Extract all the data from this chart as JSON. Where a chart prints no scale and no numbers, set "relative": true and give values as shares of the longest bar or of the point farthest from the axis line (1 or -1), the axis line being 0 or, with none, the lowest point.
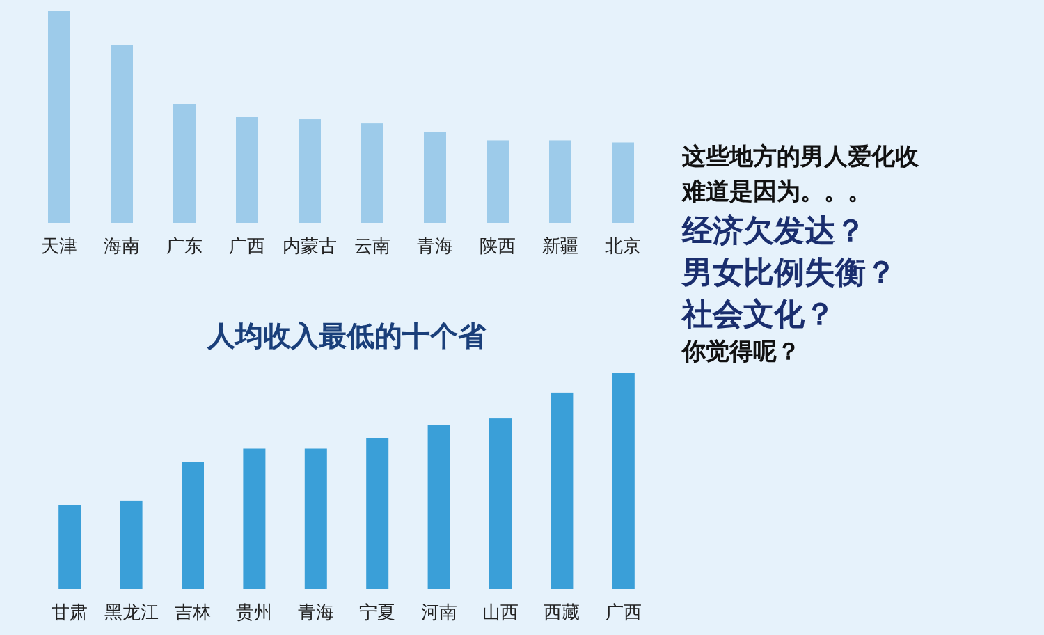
{
  "chart_data": [
    {
      "type": "bar",
      "relative": true,
      "categories": [
        "天津",
        "海南",
        "广东",
        "广西",
        "内蒙古",
        "云南",
        "青海",
        "陕西",
        "新疆",
        "北京"
      ],
      "values": [
        1,
        0.84,
        0.56,
        0.5,
        0.49,
        0.47,
        0.43,
        0.39,
        0.39,
        0.38
      ],
      "color": "#9dcbea"
    },
    {
      "type": "bar",
      "relative": true,
      "title": "人均收入最低的十个省",
      "categories": [
        "甘肃",
        "黑龙江",
        "吉林",
        "贵州",
        "青海",
        "宁夏",
        "河南",
        "山西",
        "西藏",
        "广西"
      ],
      "values": [
        0.39,
        0.41,
        0.59,
        0.65,
        0.65,
        0.7,
        0.76,
        0.79,
        0.91,
        1
      ],
      "color": "#3a9fd8"
    },
    {
      "type": "other",
      "annotations": [
        "这些地方的男人爱化收",
        "难道是因为。。。",
        "经济欠发达？",
        "男女比例失衡？",
        "社会文化？",
        "你觉得呢？"
      ]
    }
  ]
}
